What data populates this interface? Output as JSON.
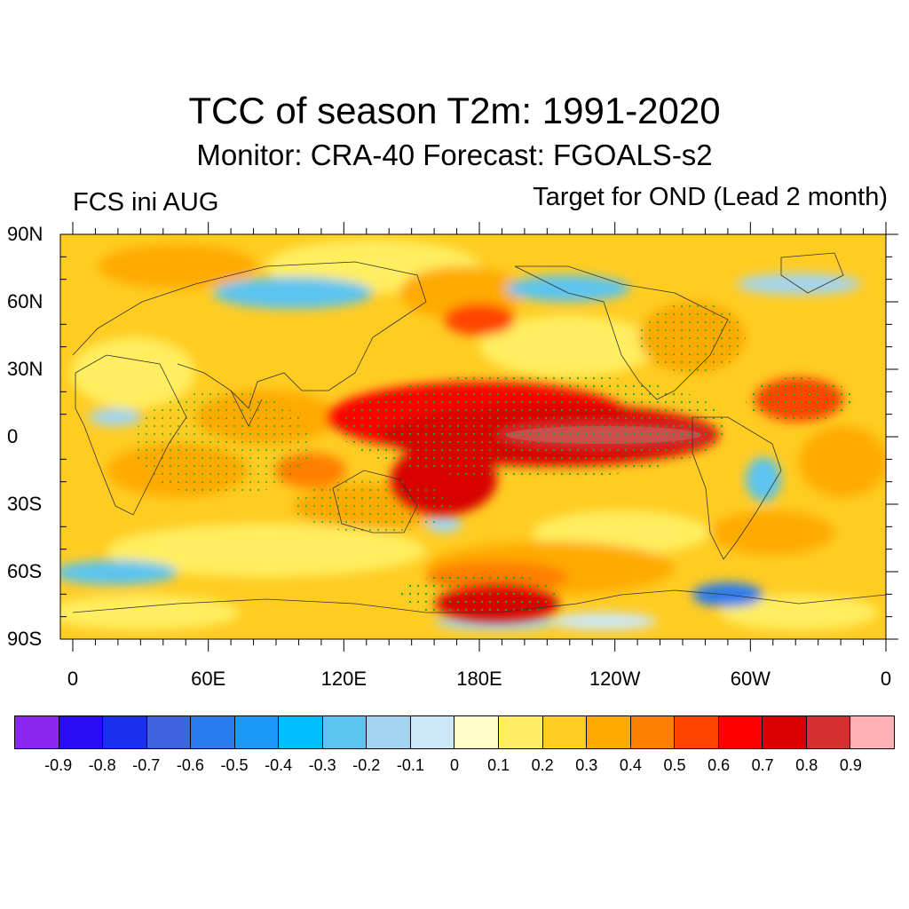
{
  "title": "TCC of season T2m: 1991-2020",
  "subtitle": "Monitor: CRA-40   Forecast: FGOALS-s2",
  "left_label": "FCS ini AUG",
  "right_label": "Target for OND (Lead 2 month)",
  "lat_labels": [
    "90N",
    "60N",
    "30N",
    "0",
    "30S",
    "60S",
    "90S"
  ],
  "lon_labels": [
    "0",
    "60E",
    "120E",
    "180E",
    "120W",
    "60W",
    "0"
  ],
  "colorbar": {
    "colors": [
      "#8b28f0",
      "#2c0cf4",
      "#1a32f0",
      "#3f63e0",
      "#2a7bee",
      "#1a9af8",
      "#00bfff",
      "#5bc4f0",
      "#a2d4f0",
      "#cce8f8",
      "#fffdc8",
      "#ffee60",
      "#ffcc22",
      "#ffaa00",
      "#ff7f00",
      "#ff4400",
      "#ff0000",
      "#d80000",
      "#d43030",
      "#ffb0b4"
    ],
    "labels": [
      "-0.9",
      "-0.8",
      "-0.7",
      "-0.6",
      "-0.5",
      "-0.4",
      "-0.3",
      "-0.2",
      "-0.1",
      "0",
      "0.1",
      "0.2",
      "0.3",
      "0.4",
      "0.5",
      "0.6",
      "0.7",
      "0.8",
      "0.9"
    ]
  }
}
